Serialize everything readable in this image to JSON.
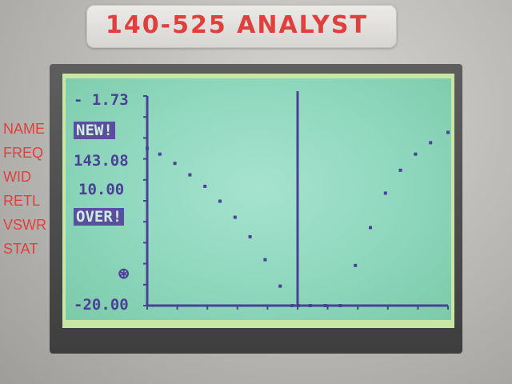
{
  "device": {
    "title": "140-525 ANALYST"
  },
  "menu": {
    "items": [
      {
        "label": "NAME"
      },
      {
        "label": "FREQ"
      },
      {
        "label": "WID"
      },
      {
        "label": "RETL"
      },
      {
        "label": "VSWR"
      },
      {
        "label": "STAT"
      }
    ]
  },
  "display": {
    "top_value": "- 1.73",
    "name_value": "NEW!",
    "freq_value": "143.08",
    "wid_value": "10.00",
    "retl_value": "OVER!",
    "stat_symbol": "⊛",
    "bottom_value": "-20.00"
  },
  "colors": {
    "lcd_ink": "#4b3f96",
    "label_red": "#e0403d",
    "lcd_bg": "#8cd6bc"
  },
  "chart_data": {
    "type": "line",
    "title": "",
    "xlabel": "",
    "ylabel": "",
    "ylim": [
      -20.0,
      -1.73
    ],
    "xlim": [
      138.08,
      148.08
    ],
    "cursor_x": 143.08,
    "series": [
      {
        "x": [
          138.08,
          138.5,
          139.0,
          139.5,
          140.0,
          140.5,
          141.0,
          141.5,
          142.0,
          142.5,
          142.9,
          143.1,
          143.5,
          144.0,
          144.5,
          145.0,
          145.5,
          146.0,
          146.5,
          147.0,
          147.5,
          148.08
        ],
        "values": [
          -6.3,
          -6.8,
          -7.6,
          -8.6,
          -9.6,
          -10.9,
          -12.3,
          -14.0,
          -16.0,
          -18.3,
          -20.0,
          -20.0,
          -20.0,
          -20.0,
          -20.0,
          -16.5,
          -13.2,
          -10.2,
          -8.2,
          -6.8,
          -5.8,
          -4.9
        ]
      }
    ]
  }
}
